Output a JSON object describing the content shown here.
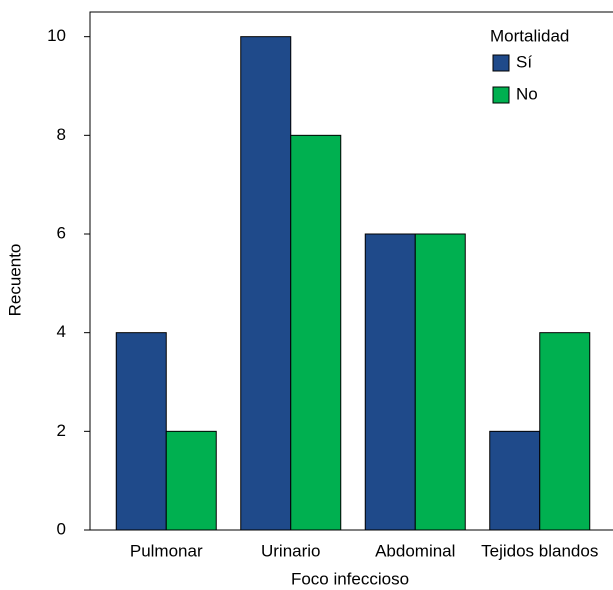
{
  "chart_data": {
    "type": "bar",
    "xlabel": "Foco infeccioso",
    "ylabel": "Recuento",
    "categories": [
      "Pulmonar",
      "Urinario",
      "Abdominal",
      "Tejidos blandos"
    ],
    "series": [
      {
        "name": "Sí",
        "color": "#1f4a8a",
        "values": [
          4,
          10,
          6,
          2
        ]
      },
      {
        "name": "No",
        "color": "#00b050",
        "values": [
          2,
          8,
          6,
          4
        ]
      }
    ],
    "legend_title": "Mortalidad",
    "legend": "upper right",
    "ylim": [
      0,
      10.5
    ],
    "yticks": [
      0,
      2,
      4,
      6,
      8,
      10
    ]
  }
}
